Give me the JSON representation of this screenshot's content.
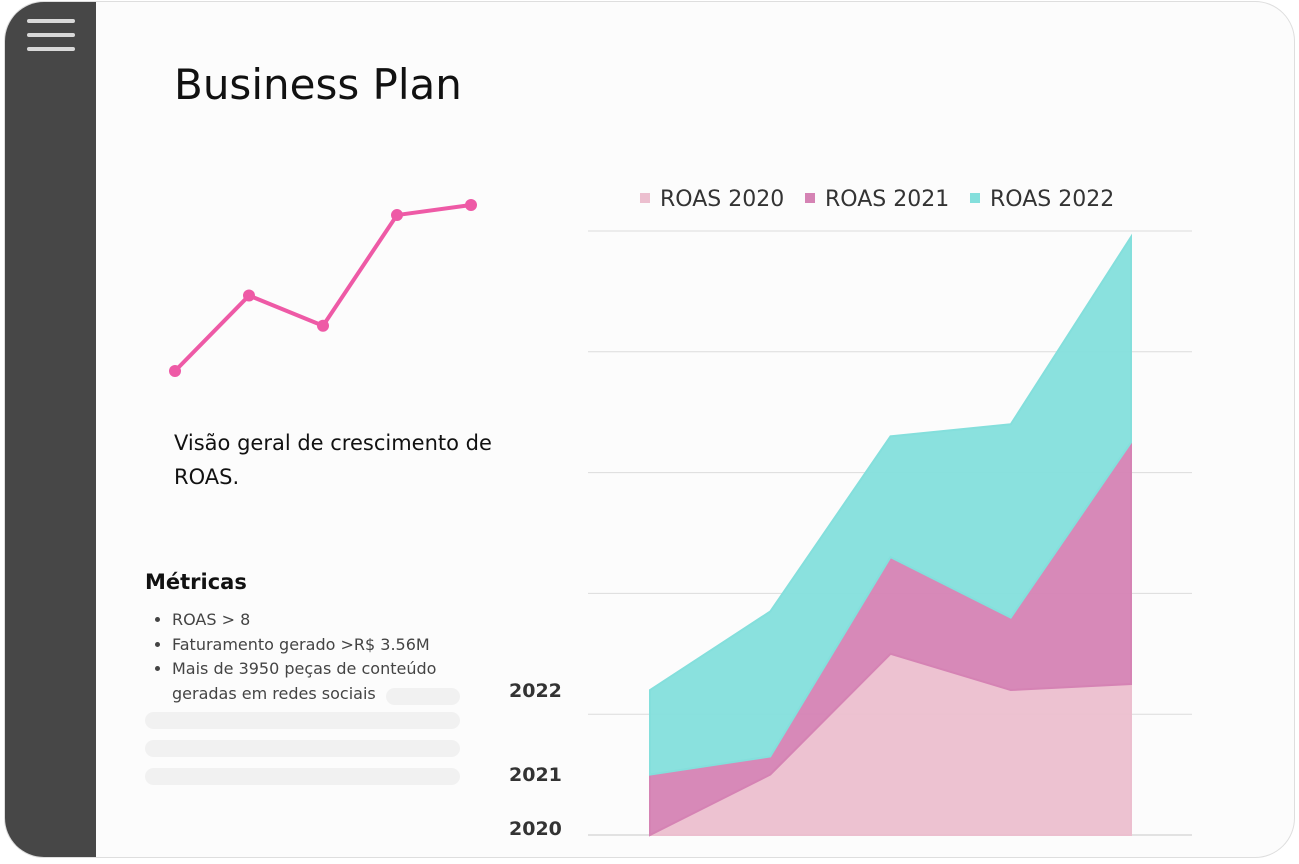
{
  "header": {
    "title": "Business Plan"
  },
  "description": "Visão geral de crescimento de ROAS.",
  "metrics": {
    "title": "Métricas",
    "items": [
      "ROAS > 8",
      "Faturamento gerado >R$ 3.56M",
      "Mais de 3950 peças de conteúdo geradas em redes sociais"
    ]
  },
  "chart_data": [
    {
      "type": "line",
      "categories": [
        null,
        null,
        null,
        null,
        null
      ],
      "values": [
        1,
        2.5,
        1.9,
        4.1,
        4.3
      ],
      "color": "#ee5aa6"
    },
    {
      "type": "area",
      "stacked": true,
      "categories": [
        null,
        null,
        null,
        null,
        null
      ],
      "series": [
        {
          "name": "ROAS 2020",
          "color": "#ecbfcf",
          "values": [
            0,
            0.5,
            1.5,
            1.2,
            1.25
          ]
        },
        {
          "name": "ROAS 2021",
          "color": "#d583b4",
          "values": [
            0.5,
            0.15,
            0.8,
            0.6,
            2.0
          ]
        },
        {
          "name": "ROAS 2022",
          "color": "#84dfdc",
          "values": [
            0.7,
            1.2,
            1.0,
            1.6,
            1.7
          ]
        }
      ],
      "ylim": [
        0,
        5
      ],
      "yticks": [
        0,
        1,
        2,
        3,
        4,
        5
      ],
      "grid": true,
      "legend": "top",
      "annotations": [
        "2022",
        "2021",
        "2020"
      ]
    }
  ]
}
